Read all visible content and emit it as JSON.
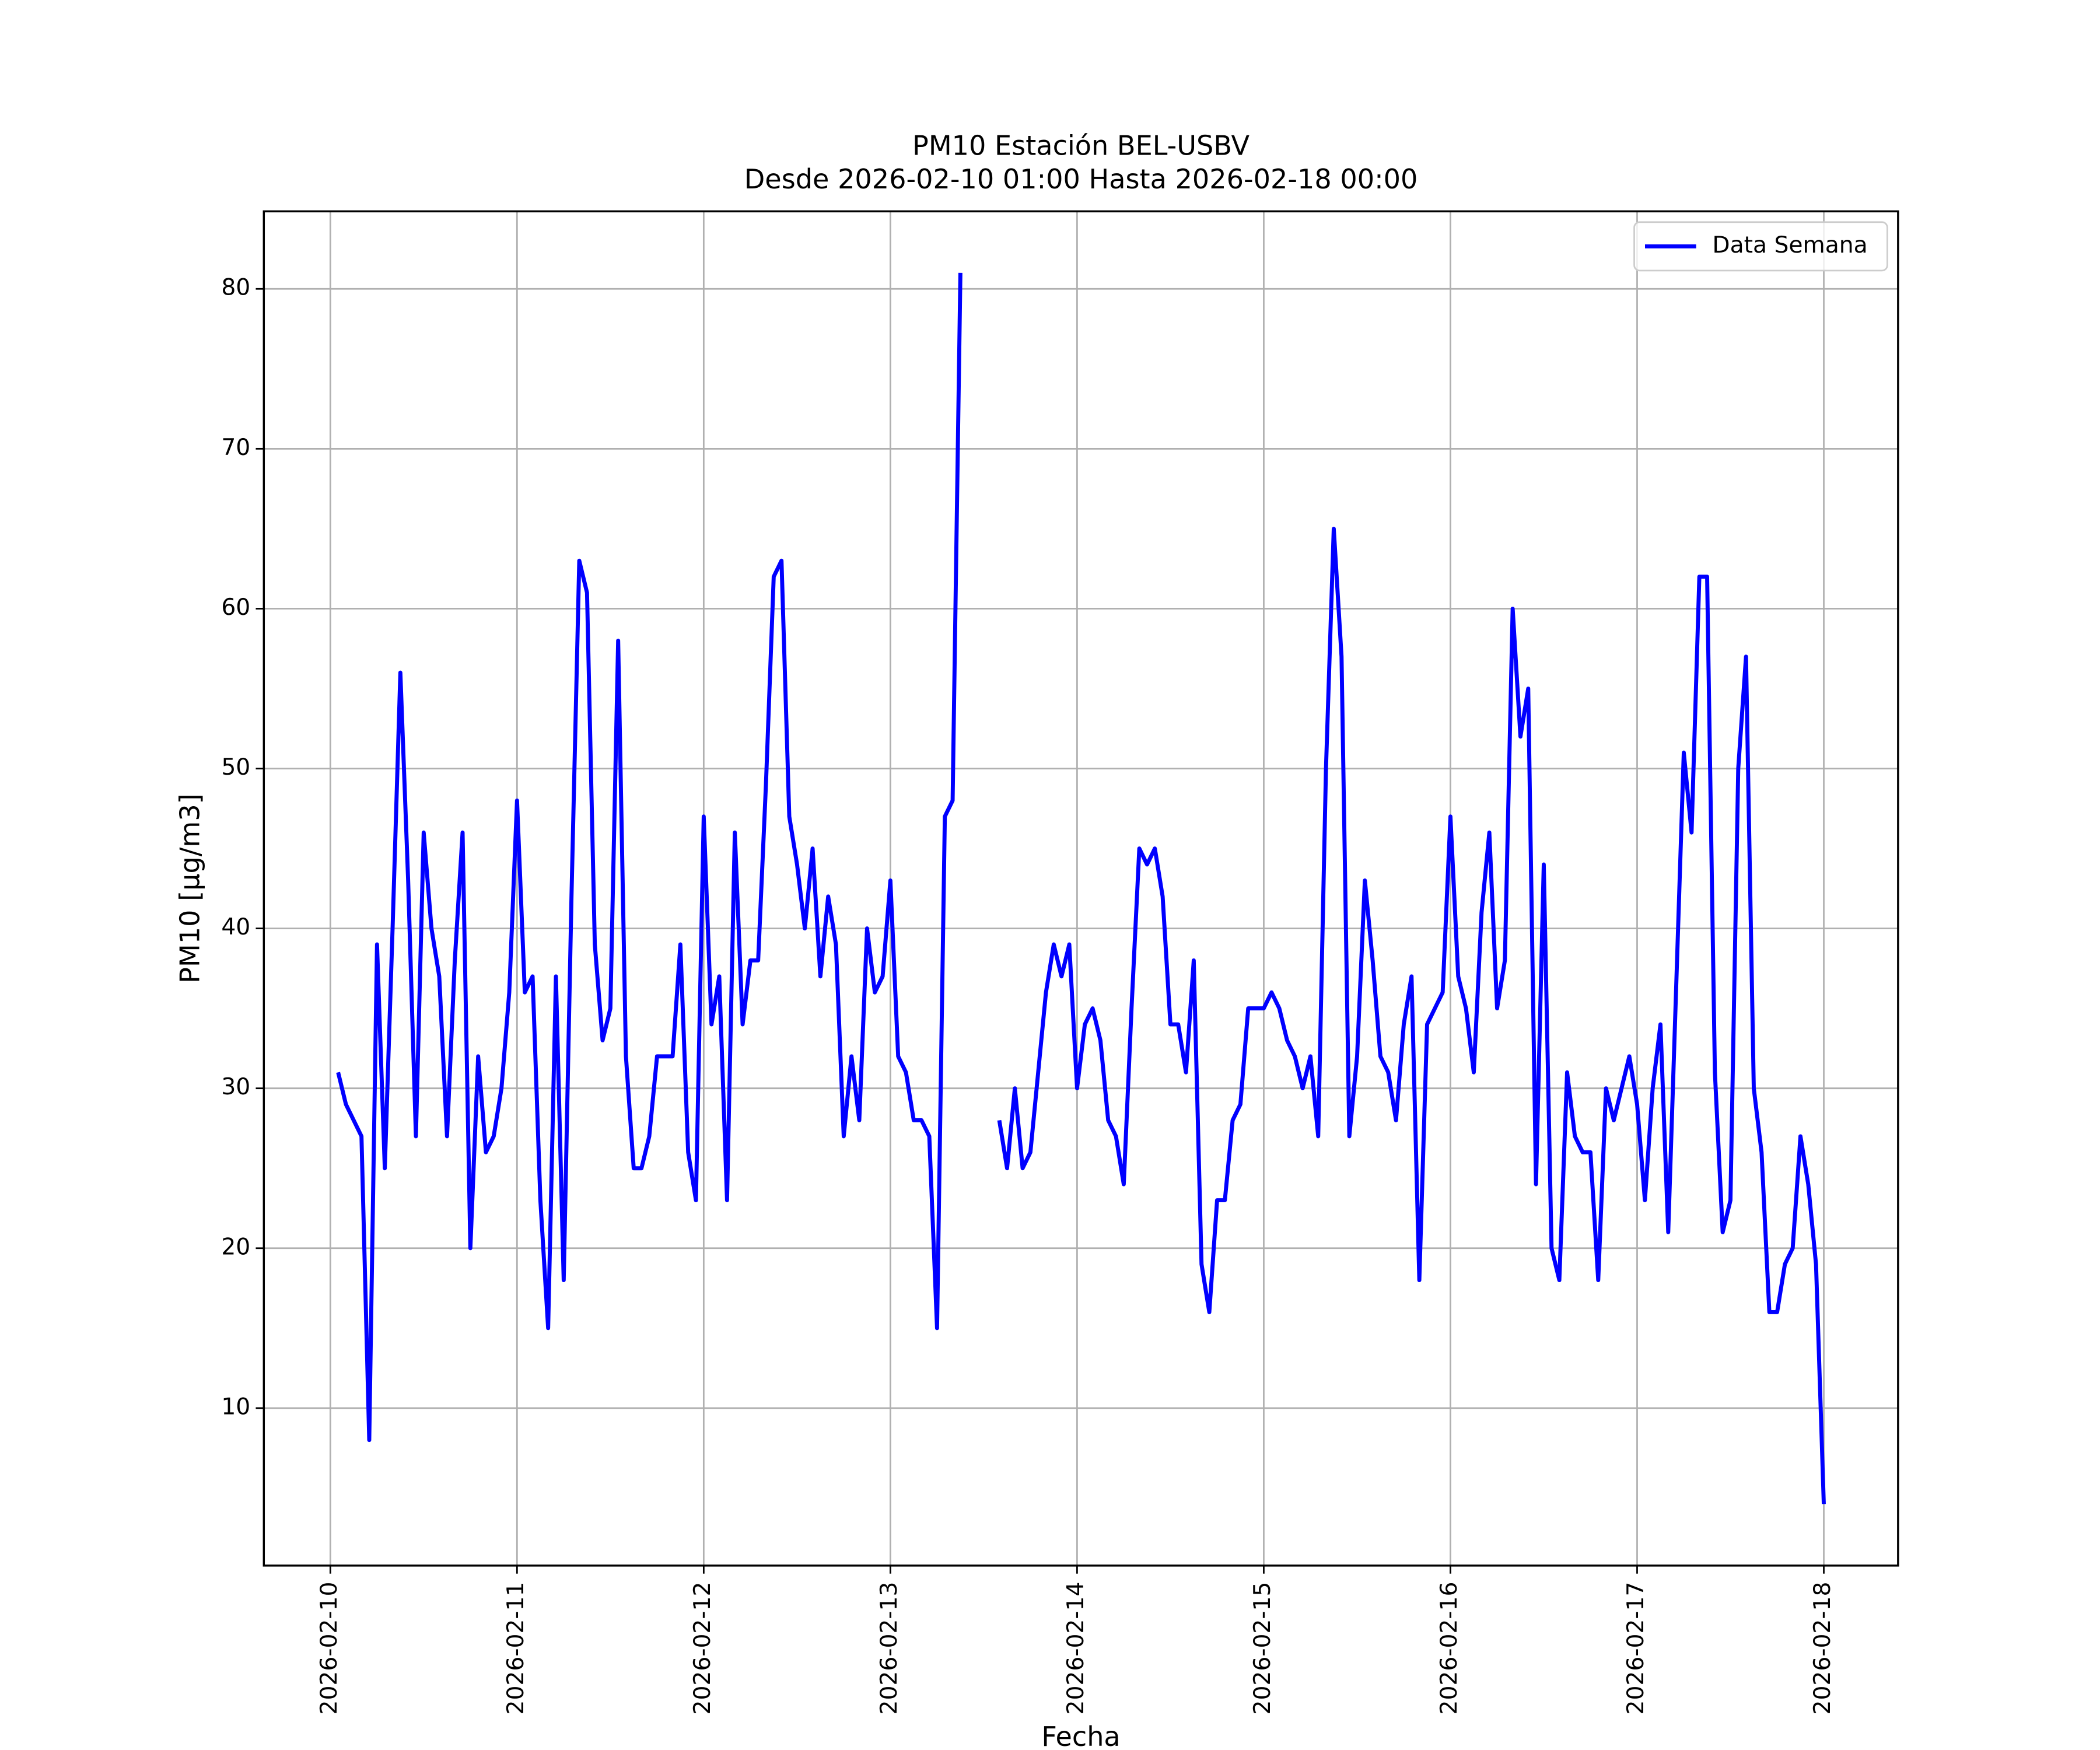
{
  "chart_data": {
    "type": "line",
    "title": "PM10 Estación BEL-USBV",
    "subtitle": "Desde 2026-02-10 01:00 Hasta 2026-02-18 00:00",
    "x_label": "Fecha",
    "y_label": "PM10 [μg/m3]",
    "x": [
      "2026-02-10T01:00",
      "2026-02-10T02:00",
      "2026-02-10T03:00",
      "2026-02-10T04:00",
      "2026-02-10T05:00",
      "2026-02-10T06:00",
      "2026-02-10T07:00",
      "2026-02-10T08:00",
      "2026-02-10T09:00",
      "2026-02-10T10:00",
      "2026-02-10T11:00",
      "2026-02-10T12:00",
      "2026-02-10T13:00",
      "2026-02-10T14:00",
      "2026-02-10T15:00",
      "2026-02-10T16:00",
      "2026-02-10T17:00",
      "2026-02-10T18:00",
      "2026-02-10T19:00",
      "2026-02-10T20:00",
      "2026-02-10T21:00",
      "2026-02-10T22:00",
      "2026-02-10T23:00",
      "2026-02-11T00:00",
      "2026-02-11T01:00",
      "2026-02-11T02:00",
      "2026-02-11T03:00",
      "2026-02-11T04:00",
      "2026-02-11T05:00",
      "2026-02-11T06:00",
      "2026-02-11T07:00",
      "2026-02-11T08:00",
      "2026-02-11T09:00",
      "2026-02-11T10:00",
      "2026-02-11T11:00",
      "2026-02-11T12:00",
      "2026-02-11T13:00",
      "2026-02-11T14:00",
      "2026-02-11T15:00",
      "2026-02-11T16:00",
      "2026-02-11T17:00",
      "2026-02-11T18:00",
      "2026-02-11T19:00",
      "2026-02-11T20:00",
      "2026-02-11T21:00",
      "2026-02-11T22:00",
      "2026-02-11T23:00",
      "2026-02-12T00:00",
      "2026-02-12T01:00",
      "2026-02-12T02:00",
      "2026-02-12T03:00",
      "2026-02-12T04:00",
      "2026-02-12T05:00",
      "2026-02-12T06:00",
      "2026-02-12T07:00",
      "2026-02-12T08:00",
      "2026-02-12T09:00",
      "2026-02-12T10:00",
      "2026-02-12T11:00",
      "2026-02-12T12:00",
      "2026-02-12T13:00",
      "2026-02-12T14:00",
      "2026-02-12T15:00",
      "2026-02-12T16:00",
      "2026-02-12T17:00",
      "2026-02-12T18:00",
      "2026-02-12T19:00",
      "2026-02-12T20:00",
      "2026-02-12T21:00",
      "2026-02-12T22:00",
      "2026-02-12T23:00",
      "2026-02-13T00:00",
      "2026-02-13T01:00",
      "2026-02-13T02:00",
      "2026-02-13T03:00",
      "2026-02-13T04:00",
      "2026-02-13T05:00",
      "2026-02-13T06:00",
      "2026-02-13T07:00",
      "2026-02-13T08:00",
      "2026-02-13T09:00",
      "2026-02-13T10:00",
      "2026-02-13T11:00",
      "2026-02-13T12:00",
      "2026-02-13T13:00",
      "2026-02-13T14:00",
      "2026-02-13T15:00",
      "2026-02-13T16:00",
      "2026-02-13T17:00",
      "2026-02-13T18:00",
      "2026-02-13T19:00",
      "2026-02-13T20:00",
      "2026-02-13T21:00",
      "2026-02-13T22:00",
      "2026-02-13T23:00",
      "2026-02-14T00:00",
      "2026-02-14T01:00",
      "2026-02-14T02:00",
      "2026-02-14T03:00",
      "2026-02-14T04:00",
      "2026-02-14T05:00",
      "2026-02-14T06:00",
      "2026-02-14T07:00",
      "2026-02-14T08:00",
      "2026-02-14T09:00",
      "2026-02-14T10:00",
      "2026-02-14T11:00",
      "2026-02-14T12:00",
      "2026-02-14T13:00",
      "2026-02-14T14:00",
      "2026-02-14T15:00",
      "2026-02-14T16:00",
      "2026-02-14T17:00",
      "2026-02-14T18:00",
      "2026-02-14T19:00",
      "2026-02-14T20:00",
      "2026-02-14T21:00",
      "2026-02-14T22:00",
      "2026-02-14T23:00",
      "2026-02-15T00:00",
      "2026-02-15T01:00",
      "2026-02-15T02:00",
      "2026-02-15T03:00",
      "2026-02-15T04:00",
      "2026-02-15T05:00",
      "2026-02-15T06:00",
      "2026-02-15T07:00",
      "2026-02-15T08:00",
      "2026-02-15T09:00",
      "2026-02-15T10:00",
      "2026-02-15T11:00",
      "2026-02-15T12:00",
      "2026-02-15T13:00",
      "2026-02-15T14:00",
      "2026-02-15T15:00",
      "2026-02-15T16:00",
      "2026-02-15T17:00",
      "2026-02-15T18:00",
      "2026-02-15T19:00",
      "2026-02-15T20:00",
      "2026-02-15T21:00",
      "2026-02-15T22:00",
      "2026-02-15T23:00",
      "2026-02-16T00:00",
      "2026-02-16T01:00",
      "2026-02-16T02:00",
      "2026-02-16T03:00",
      "2026-02-16T04:00",
      "2026-02-16T05:00",
      "2026-02-16T06:00",
      "2026-02-16T07:00",
      "2026-02-16T08:00",
      "2026-02-16T09:00",
      "2026-02-16T10:00",
      "2026-02-16T11:00",
      "2026-02-16T12:00",
      "2026-02-16T13:00",
      "2026-02-16T14:00",
      "2026-02-16T15:00",
      "2026-02-16T16:00",
      "2026-02-16T17:00",
      "2026-02-16T18:00",
      "2026-02-16T19:00",
      "2026-02-16T20:00",
      "2026-02-16T21:00",
      "2026-02-16T22:00",
      "2026-02-16T23:00",
      "2026-02-17T00:00",
      "2026-02-17T01:00",
      "2026-02-17T02:00",
      "2026-02-17T03:00",
      "2026-02-17T04:00",
      "2026-02-17T05:00",
      "2026-02-17T06:00",
      "2026-02-17T07:00",
      "2026-02-17T08:00",
      "2026-02-17T09:00",
      "2026-02-17T10:00",
      "2026-02-17T11:00",
      "2026-02-17T12:00",
      "2026-02-17T13:00",
      "2026-02-17T14:00",
      "2026-02-17T15:00",
      "2026-02-17T16:00",
      "2026-02-17T17:00",
      "2026-02-17T18:00",
      "2026-02-17T19:00",
      "2026-02-17T20:00",
      "2026-02-17T21:00",
      "2026-02-17T22:00",
      "2026-02-17T23:00",
      "2026-02-18T00:00"
    ],
    "series": [
      {
        "name": "Data Semana",
        "color": "#0000ff",
        "values": [
          31,
          29,
          28,
          27,
          8,
          39,
          25,
          40,
          56,
          43,
          27,
          46,
          40,
          37,
          27,
          38,
          46,
          20,
          32,
          26,
          27,
          30,
          36,
          48,
          36,
          37,
          23,
          15,
          37,
          18,
          42,
          63,
          61,
          39,
          33,
          35,
          58,
          32,
          25,
          25,
          27,
          32,
          32,
          32,
          39,
          26,
          23,
          47,
          34,
          37,
          23,
          46,
          34,
          38,
          38,
          49,
          62,
          63,
          47,
          44,
          40,
          45,
          37,
          42,
          39,
          27,
          32,
          28,
          40,
          36,
          37,
          43,
          32,
          31,
          28,
          28,
          27,
          15,
          47,
          48,
          81,
          null,
          null,
          null,
          null,
          28,
          25,
          30,
          25,
          26,
          31,
          36,
          39,
          37,
          39,
          30,
          34,
          35,
          33,
          28,
          27,
          24,
          35,
          45,
          44,
          45,
          42,
          34,
          34,
          31,
          38,
          19,
          16,
          23,
          23,
          28,
          29,
          35,
          35,
          35,
          36,
          35,
          33,
          32,
          30,
          32,
          27,
          50,
          65,
          57,
          27,
          32,
          43,
          38,
          32,
          31,
          28,
          34,
          37,
          18,
          34,
          35,
          36,
          47,
          37,
          35,
          31,
          41,
          46,
          35,
          38,
          60,
          52,
          55,
          24,
          44,
          20,
          18,
          31,
          27,
          26,
          26,
          18,
          30,
          28,
          30,
          32,
          29,
          23,
          30,
          34,
          21,
          36,
          51,
          46,
          62,
          62,
          31,
          21,
          23,
          50,
          57,
          30,
          26,
          16,
          16,
          19,
          20,
          27,
          24,
          19,
          4
        ]
      }
    ],
    "xlim": [
      "2026-02-09T15:27",
      "2026-02-18T09:33"
    ],
    "xticks": [
      "2026-02-10",
      "2026-02-11",
      "2026-02-12",
      "2026-02-13",
      "2026-02-14",
      "2026-02-15",
      "2026-02-16",
      "2026-02-17",
      "2026-02-18"
    ],
    "ylim": [
      0.15,
      84.85
    ],
    "yticks": [
      10,
      20,
      30,
      40,
      50,
      60,
      70,
      80
    ],
    "grid": true,
    "legend": "upper right"
  }
}
